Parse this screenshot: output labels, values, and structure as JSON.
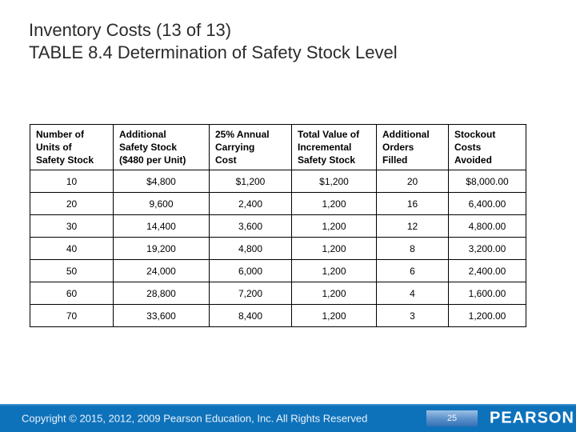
{
  "slide": {
    "title_line1": "Inventory Costs (13 of 13)",
    "title_line2": "TABLE 8.4 Determination of Safety Stock Level"
  },
  "table": {
    "headers": [
      "Number of\nUnits of\nSafety Stock",
      "Additional\nSafety Stock\n($480 per Unit)",
      "25% Annual\nCarrying\nCost",
      "Total Value of\nIncremental\nSafety Stock",
      "Additional\nOrders\nFilled",
      "Stockout\nCosts\nAvoided"
    ],
    "rows": [
      [
        "10",
        "$4,800",
        "$1,200",
        "$1,200",
        "20",
        "$8,000.00"
      ],
      [
        "20",
        "9,600",
        "2,400",
        "1,200",
        "16",
        "6,400.00"
      ],
      [
        "30",
        "14,400",
        "3,600",
        "1,200",
        "12",
        "4,800.00"
      ],
      [
        "40",
        "19,200",
        "4,800",
        "1,200",
        "8",
        "3,200.00"
      ],
      [
        "50",
        "24,000",
        "6,000",
        "1,200",
        "6",
        "2,400.00"
      ],
      [
        "60",
        "28,800",
        "7,200",
        "1,200",
        "4",
        "1,600.00"
      ],
      [
        "70",
        "33,600",
        "8,400",
        "1,200",
        "3",
        "1,200.00"
      ]
    ]
  },
  "footer": {
    "copyright": "Copyright © 2015, 2012, 2009 Pearson Education, Inc. All Rights Reserved",
    "page_number": "25",
    "brand": "PEARSON",
    "colors": {
      "bar": "#0e72bb",
      "page_box_top": "#9bbfe4",
      "page_box_bottom": "#3470b4",
      "text": "#eaf3fb",
      "title_text": "#2b2b2b"
    }
  }
}
